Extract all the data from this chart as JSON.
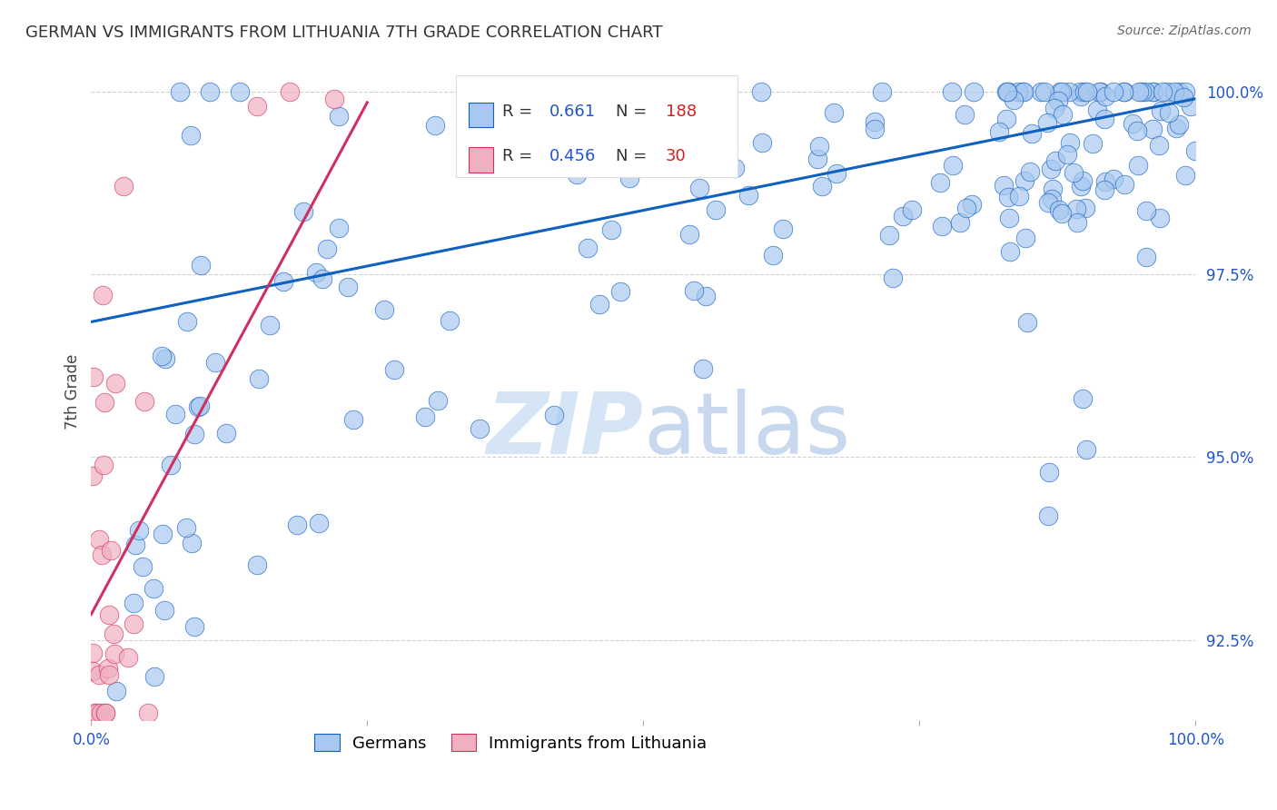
{
  "title": "GERMAN VS IMMIGRANTS FROM LITHUANIA 7TH GRADE CORRELATION CHART",
  "source": "Source: ZipAtlas.com",
  "ylabel": "7th Grade",
  "xlim": [
    0,
    1.0
  ],
  "ylim": [
    0.914,
    1.004
  ],
  "ytick_vals": [
    0.925,
    0.95,
    0.975,
    1.0
  ],
  "ytick_labels": [
    "92.5%",
    "95.0%",
    "97.5%",
    "100.0%"
  ],
  "legend_box_text": [
    "R =",
    "0.661",
    "N =",
    "188",
    "R =",
    "0.456",
    "N =",
    "30"
  ],
  "german_color": "#a8c8f0",
  "lith_color": "#f0b0c0",
  "line_german_color": "#1060c0",
  "line_lith_color": "#d03060",
  "text_blue": "#2255cc",
  "text_red": "#cc2222",
  "watermark_color": "#d5e5f5",
  "german_line_intercept": 0.9685,
  "german_line_slope": 0.0305,
  "lith_line_intercept": 0.9285,
  "lith_line_slope": 0.28,
  "seed": 77,
  "n_german": 188,
  "n_lith": 30
}
